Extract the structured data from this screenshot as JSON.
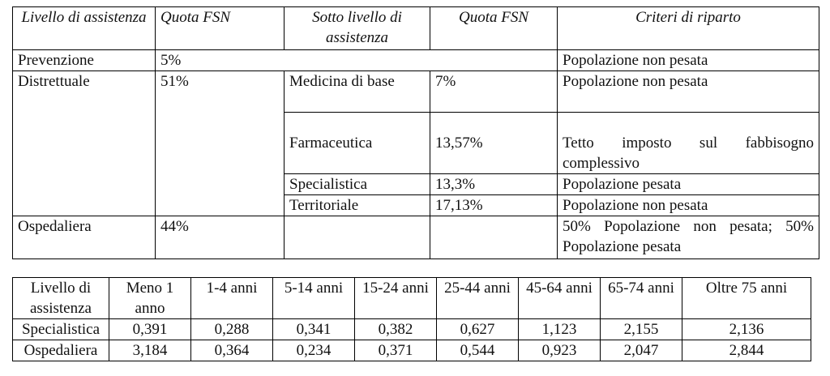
{
  "table1": {
    "headers": {
      "livello": "Livello di assistenza",
      "quota": "Quota FSN",
      "sotto_livello": "Sotto livello di assistenza",
      "quota_sotto": "Quota FSN",
      "criteri": "Criteri di riparto"
    },
    "prevenzione": {
      "livello": "Prevenzione",
      "quota": "5%",
      "criteri": "Popolazione non pesata"
    },
    "distrettuale": {
      "livello": "Distrettuale",
      "quota": "51%",
      "sub": [
        {
          "name": "Medicina di base",
          "quota": "7%",
          "criteri": "Popolazione non pesata"
        },
        {
          "name": "Farmaceutica",
          "quota": "13,57%",
          "criteri": "Tetto imposto sul fabbisogno complessivo"
        },
        {
          "name": "Specialistica",
          "quota": "13,3%",
          "criteri": "Popolazione pesata"
        },
        {
          "name": "Territoriale",
          "quota": "17,13%",
          "criteri": "Popolazione non pesata"
        }
      ]
    },
    "ospedaliera": {
      "livello": "Ospedaliera",
      "quota": "44%",
      "criteri": "50% Popolazione non pesata; 50% Popolazione pesata"
    }
  },
  "table2": {
    "headers": [
      "Livello di assistenza",
      "Meno 1 anno",
      "1-4 anni",
      "5-14 anni",
      "15-24 anni",
      "25-44 anni",
      "45-64 anni",
      "65-74 anni",
      "Oltre 75 anni"
    ],
    "rows": [
      [
        "Specialistica",
        "0,391",
        "0,288",
        "0,341",
        "0,382",
        "0,627",
        "1,123",
        "2,155",
        "2,136"
      ],
      [
        "Ospedaliera",
        "3,184",
        "0,364",
        "0,234",
        "0,371",
        "0,544",
        "0,923",
        "2,047",
        "2,844"
      ]
    ]
  }
}
